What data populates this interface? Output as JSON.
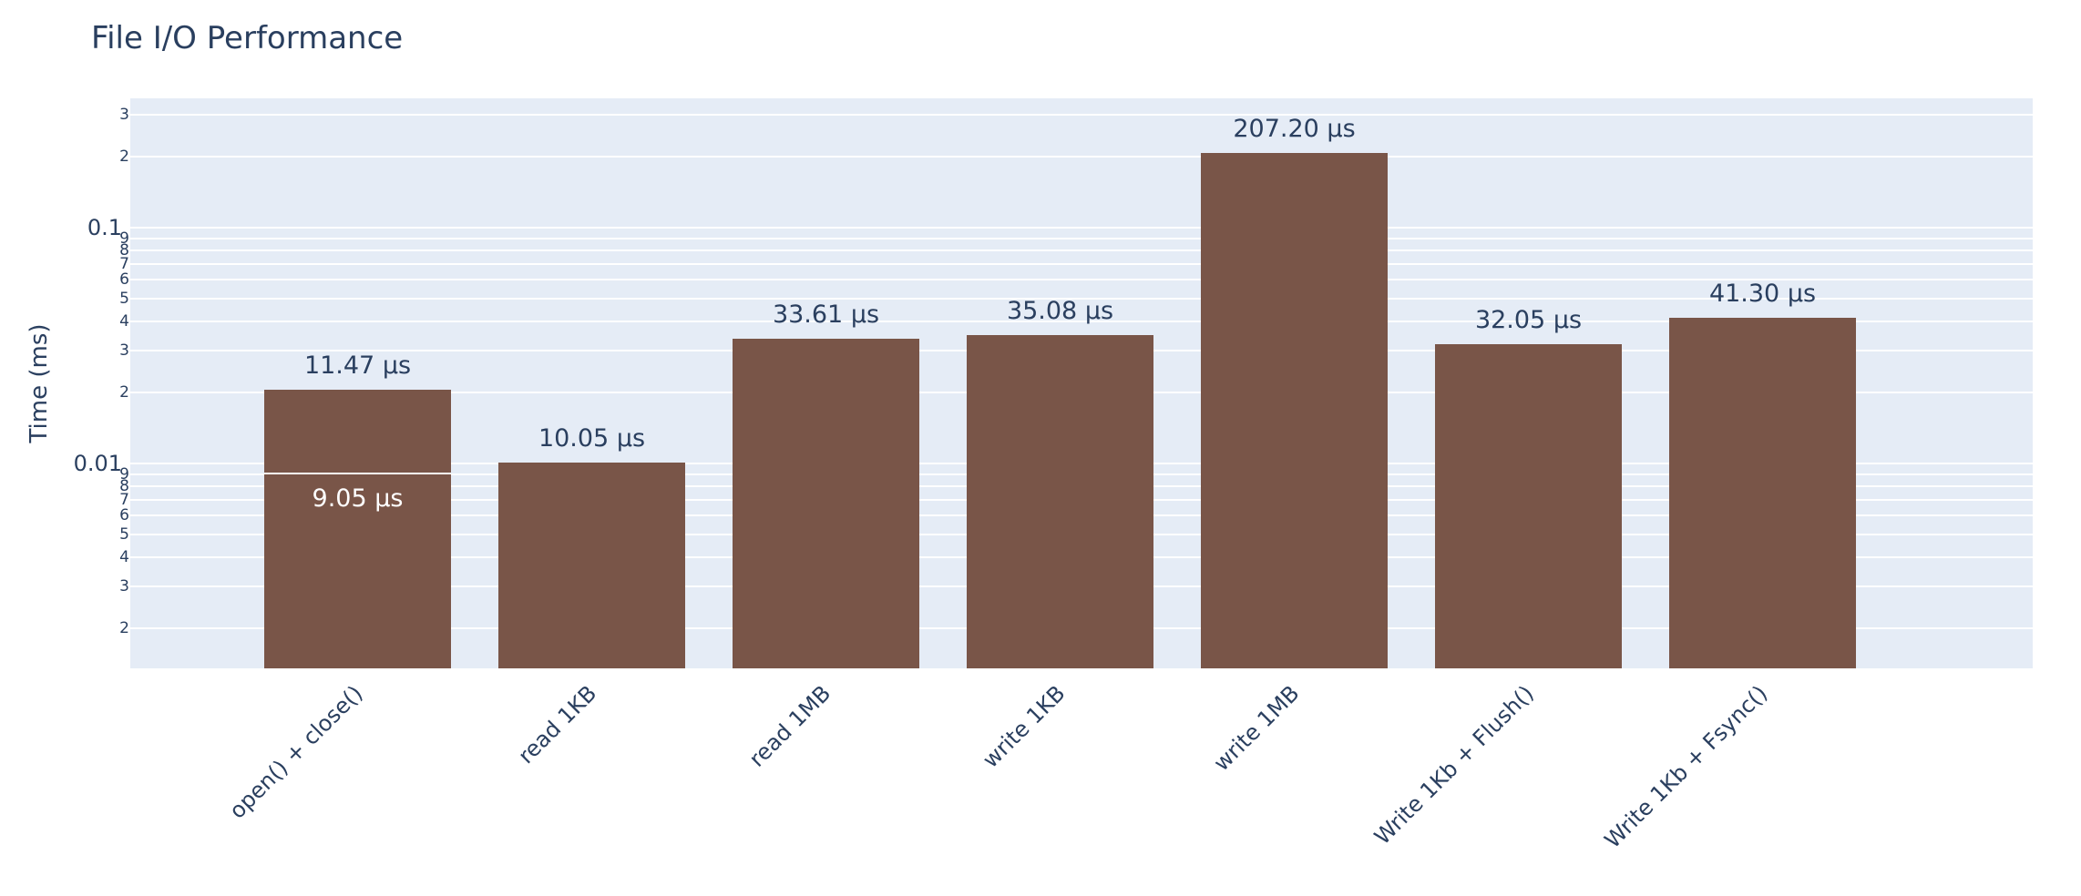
{
  "title": "File I/O Performance",
  "colors": {
    "bar": "#795548",
    "plot_background": "#e5ecf6",
    "gridline": "#ffffff",
    "text": "#2a3f5f",
    "inside_label": "#ffffff",
    "page_background": "#ffffff"
  },
  "chart_data": {
    "type": "bar",
    "title": "File I/O Performance",
    "xlabel": "",
    "ylabel": "Time (ms)",
    "y_scale": "log",
    "y_unit": "ms",
    "ylim_ms": [
      0.00135,
      0.353
    ],
    "grid": true,
    "legend": false,
    "x_tick_angle": -45,
    "categories": [
      "open() + close()",
      "read 1KB",
      "read 1MB",
      "write 1KB",
      "write 1MB",
      "Write 1Kb + Flush()",
      "Write 1Kb + Fsync()"
    ],
    "bars": [
      {
        "category": "open() + close()",
        "stacked": true,
        "stack_total_us": 20.52,
        "segments": [
          {
            "value_us": 9.05,
            "value_ms": 0.00905,
            "label": "9.05 µs",
            "label_position": "inside"
          },
          {
            "value_us": 11.47,
            "value_ms": 0.01147,
            "label": "11.47 µs",
            "label_position": "outside"
          }
        ]
      },
      {
        "category": "read 1KB",
        "stacked": false,
        "segments": [
          {
            "value_us": 10.05,
            "value_ms": 0.01005,
            "label": "10.05 µs",
            "label_position": "outside"
          }
        ]
      },
      {
        "category": "read 1MB",
        "stacked": false,
        "segments": [
          {
            "value_us": 33.61,
            "value_ms": 0.03361,
            "label": "33.61 µs",
            "label_position": "outside"
          }
        ]
      },
      {
        "category": "write 1KB",
        "stacked": false,
        "segments": [
          {
            "value_us": 35.08,
            "value_ms": 0.03508,
            "label": "35.08 µs",
            "label_position": "outside"
          }
        ]
      },
      {
        "category": "write 1MB",
        "stacked": false,
        "segments": [
          {
            "value_us": 207.2,
            "value_ms": 0.2072,
            "label": "207.20 µs",
            "label_position": "outside"
          }
        ]
      },
      {
        "category": "Write 1Kb + Flush()",
        "stacked": false,
        "segments": [
          {
            "value_us": 32.05,
            "value_ms": 0.03205,
            "label": "32.05 µs",
            "label_position": "outside"
          }
        ]
      },
      {
        "category": "Write 1Kb + Fsync()",
        "stacked": false,
        "segments": [
          {
            "value_us": 41.3,
            "value_ms": 0.0413,
            "label": "41.30 µs",
            "label_position": "outside"
          }
        ]
      }
    ],
    "y_ticks_major": [
      {
        "value_ms": 0.1,
        "label": "0.1"
      },
      {
        "value_ms": 0.01,
        "label": "0.01"
      }
    ],
    "y_ticks_minor": [
      {
        "value_ms": 0.3,
        "label": "3"
      },
      {
        "value_ms": 0.2,
        "label": "2"
      },
      {
        "value_ms": 0.09,
        "label": "9"
      },
      {
        "value_ms": 0.08,
        "label": "8"
      },
      {
        "value_ms": 0.07,
        "label": "7"
      },
      {
        "value_ms": 0.06,
        "label": "6"
      },
      {
        "value_ms": 0.05,
        "label": "5"
      },
      {
        "value_ms": 0.04,
        "label": "4"
      },
      {
        "value_ms": 0.03,
        "label": "3"
      },
      {
        "value_ms": 0.02,
        "label": "2"
      },
      {
        "value_ms": 0.009,
        "label": "9"
      },
      {
        "value_ms": 0.008,
        "label": "8"
      },
      {
        "value_ms": 0.007,
        "label": "7"
      },
      {
        "value_ms": 0.006,
        "label": "6"
      },
      {
        "value_ms": 0.005,
        "label": "5"
      },
      {
        "value_ms": 0.004,
        "label": "4"
      },
      {
        "value_ms": 0.003,
        "label": "3"
      },
      {
        "value_ms": 0.002,
        "label": "2"
      }
    ]
  }
}
